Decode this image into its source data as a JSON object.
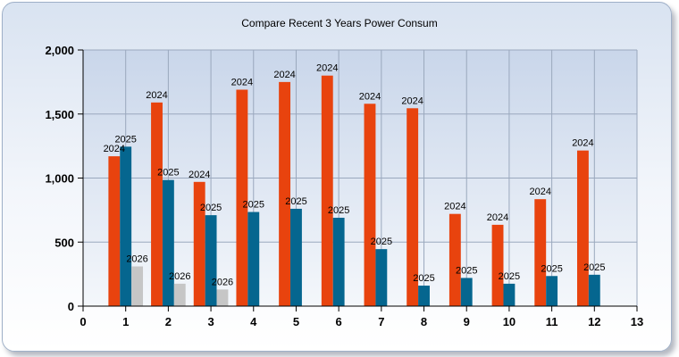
{
  "chart_data": {
    "type": "bar",
    "title": "Compare Recent 3 Years Power Consum",
    "xlabel": "",
    "ylabel": "",
    "x": [
      1,
      2,
      3,
      4,
      5,
      6,
      7,
      8,
      9,
      10,
      11,
      12
    ],
    "xlim": [
      0,
      13
    ],
    "xticks": [
      "0",
      "1",
      "2",
      "3",
      "4",
      "5",
      "6",
      "7",
      "8",
      "9",
      "10",
      "11",
      "12",
      "13"
    ],
    "ylim": [
      0,
      2000
    ],
    "yticks": [
      "0",
      "500",
      "1,000",
      "1,500",
      "2,000"
    ],
    "grid": true,
    "series": [
      {
        "name": "2024",
        "color": "#e8430e",
        "values": [
          1170,
          1590,
          970,
          1690,
          1750,
          1800,
          1580,
          1545,
          720,
          635,
          835,
          1215
        ]
      },
      {
        "name": "2025",
        "color": "#05668f",
        "values": [
          1245,
          985,
          710,
          735,
          760,
          690,
          445,
          160,
          220,
          175,
          235,
          245
        ]
      },
      {
        "name": "2026",
        "color": "#c6c6c6",
        "values": [
          310,
          175,
          130,
          null,
          null,
          null,
          null,
          null,
          null,
          null,
          null,
          null
        ]
      }
    ]
  }
}
